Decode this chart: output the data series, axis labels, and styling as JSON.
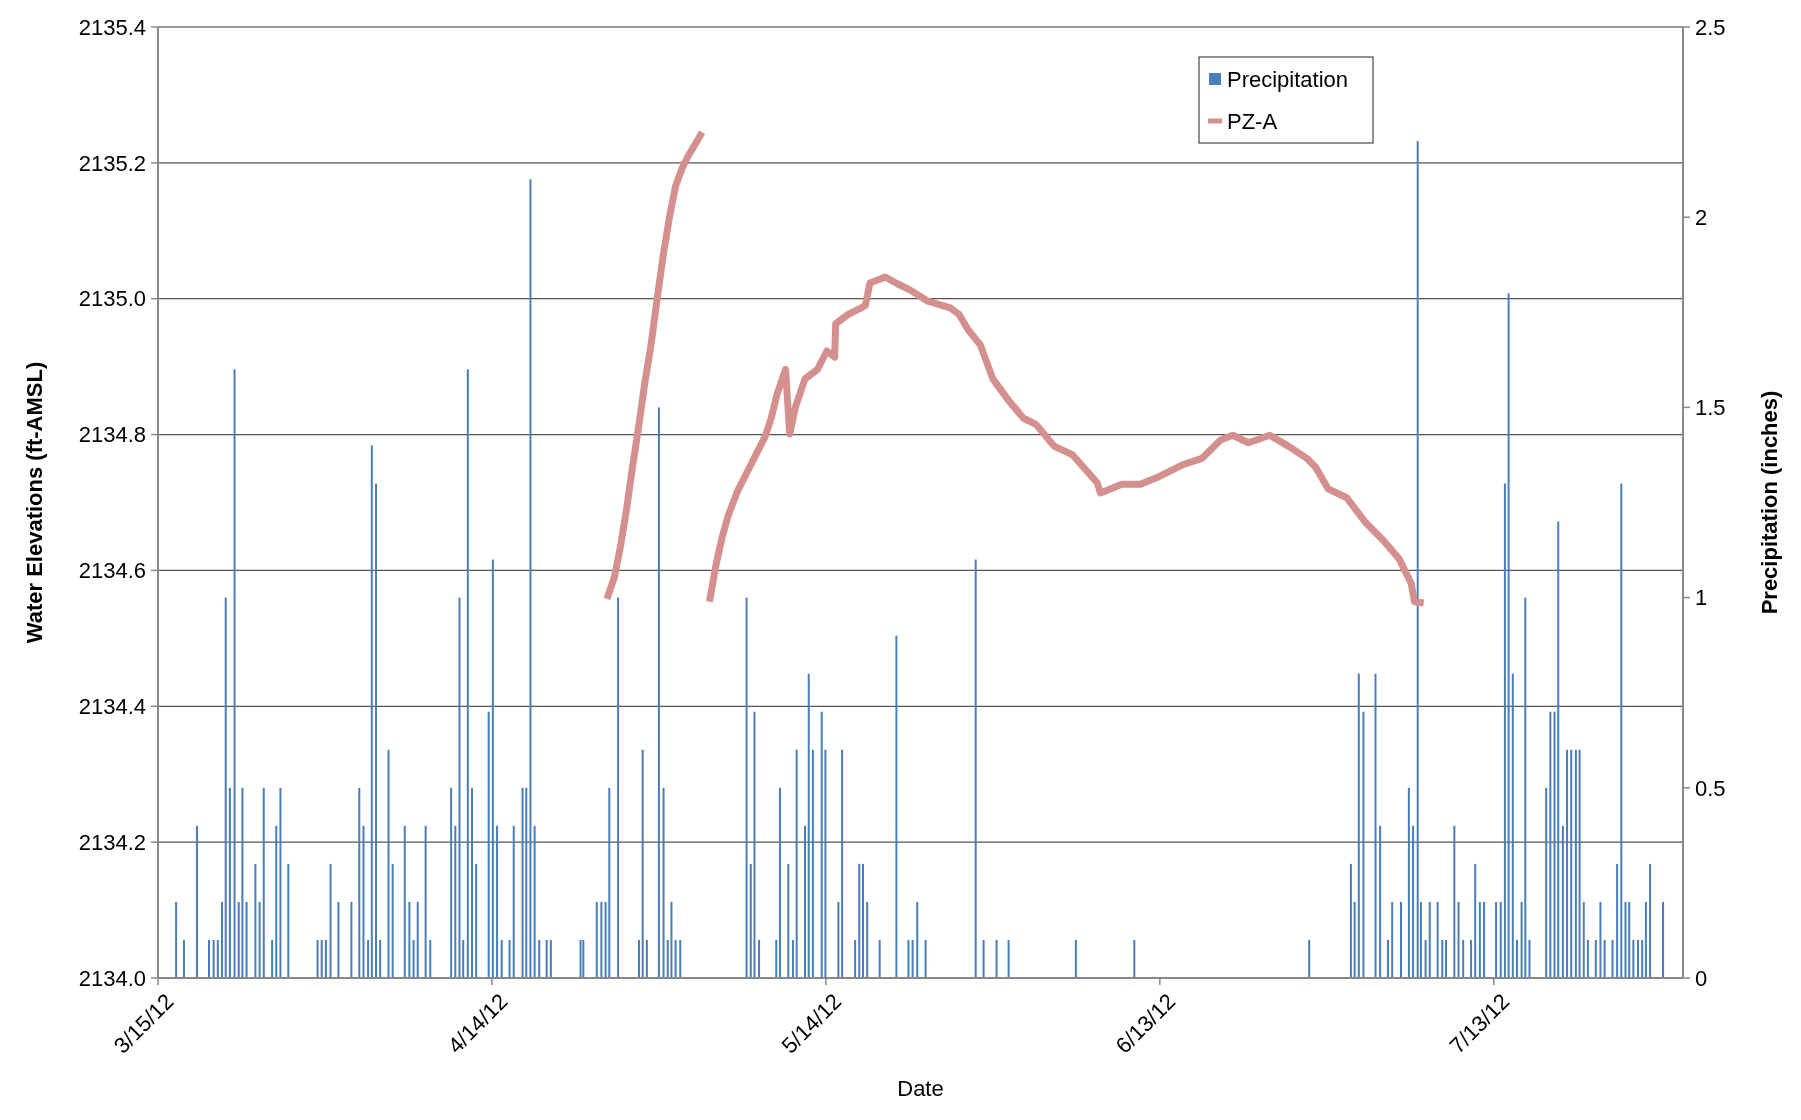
{
  "chart_data": {
    "type": "bar",
    "xlabel": "Date",
    "ylabel": "Water Elevations (ft-AMSL)",
    "y2label": "Precipitation (inches)",
    "xlim": [
      "2012-03-15",
      "2012-07-30"
    ],
    "xticks": [
      {
        "value": "2012-03-15",
        "label": "3/15/12"
      },
      {
        "value": "2012-04-14",
        "label": "4/14/12"
      },
      {
        "value": "2012-05-14",
        "label": "5/14/12"
      },
      {
        "value": "2012-06-13",
        "label": "6/13/12"
      },
      {
        "value": "2012-07-13",
        "label": "7/13/12"
      }
    ],
    "ylim": [
      2134.0,
      2135.4
    ],
    "yticks": [
      {
        "value": 2134,
        "label": "2134.0"
      },
      2134.2,
      2134.4,
      2134.6,
      2134.8,
      {
        "value": 2135,
        "label": "2135.0"
      },
      2135.2,
      2135.4
    ],
    "y2lim": [
      0,
      2.5
    ],
    "y2ticks": [
      0,
      0.5,
      1,
      1.5,
      2,
      2.5
    ],
    "grid": "y",
    "legend": "top right",
    "series": [
      {
        "name": "Precipitation",
        "axis": "y2",
        "color": "#4a7ebb",
        "x": [
          "2012-03-16T15:00",
          "2012-03-17T08:00",
          "2012-03-18T12:00",
          "2012-03-19T14:00",
          "2012-03-20T00:00",
          "2012-03-20T09:00",
          "2012-03-20T18:00",
          "2012-03-21T02:00",
          "2012-03-21T11:00",
          "2012-03-21T21:00",
          "2012-03-22T06:00",
          "2012-03-22T14:00",
          "2012-03-22T23:00",
          "2012-03-23T18:00",
          "2012-03-24T03:00",
          "2012-03-24T12:00",
          "2012-03-25T06:00",
          "2012-03-25T15:00",
          "2012-03-26T00:00",
          "2012-03-26T17:00",
          "2012-03-29T08:00",
          "2012-03-29T17:00",
          "2012-03-30T02:00",
          "2012-03-30T12:00",
          "2012-03-31T05:00",
          "2012-04-01T09:00",
          "2012-04-02T02:00",
          "2012-04-02T11:00",
          "2012-04-02T21:00",
          "2012-04-03T05:00",
          "2012-04-03T14:00",
          "2012-04-03T23:00",
          "2012-04-04T17:00",
          "2012-04-05T02:00",
          "2012-04-06T04:00",
          "2012-04-06T14:00",
          "2012-04-06T23:00",
          "2012-04-07T08:00",
          "2012-04-08T01:00",
          "2012-04-08T11:00",
          "2012-04-10T08:00",
          "2012-04-10T17:00",
          "2012-04-11T02:00",
          "2012-04-11T10:00",
          "2012-04-11T20:00",
          "2012-04-12T05:00",
          "2012-04-12T14:00",
          "2012-04-13T17:00",
          "2012-04-14T02:00",
          "2012-04-14T11:00",
          "2012-04-14T21:00",
          "2012-04-15T14:00",
          "2012-04-15T23:00",
          "2012-04-16T18:00",
          "2012-04-17T02:00",
          "2012-04-17T11:00",
          "2012-04-17T20:00",
          "2012-04-18T06:00",
          "2012-04-18T22:00",
          "2012-04-19T07:00",
          "2012-04-21T23:00",
          "2012-04-22T05:00",
          "2012-04-23T10:00",
          "2012-04-23T20:00",
          "2012-04-24T05:00",
          "2012-04-24T13:00",
          "2012-04-25T08:00",
          "2012-04-27T05:00",
          "2012-04-27T13:00",
          "2012-04-27T22:00",
          "2012-04-29T00:00",
          "2012-04-29T10:00",
          "2012-04-29T19:00",
          "2012-04-30T03:00",
          "2012-04-30T12:00",
          "2012-04-30T22:00",
          "2012-05-06T21:00",
          "2012-05-07T06:00",
          "2012-05-07T14:00",
          "2012-05-08T00:00",
          "2012-05-09T13:00",
          "2012-05-09T21:00",
          "2012-05-10T15:00",
          "2012-05-11T01:00",
          "2012-05-11T09:00",
          "2012-05-12T03:00",
          "2012-05-12T11:00",
          "2012-05-12T20:00",
          "2012-05-13T15:00",
          "2012-05-13T23:00",
          "2012-05-15T03:00",
          "2012-05-15T11:00",
          "2012-05-16T15:00",
          "2012-05-17T00:00",
          "2012-05-17T08:00",
          "2012-05-17T17:00",
          "2012-05-18T20:00",
          "2012-05-20T08:00",
          "2012-05-21T10:00",
          "2012-05-21T19:00",
          "2012-05-22T05:00",
          "2012-05-22T23:00",
          "2012-05-27T11:00",
          "2012-05-28T04:00",
          "2012-05-29T08:00",
          "2012-05-30T10:00",
          "2012-06-05T11:00",
          "2012-06-10T17:00",
          "2012-06-26T10:00",
          "2012-06-30T04:00",
          "2012-06-30T12:00",
          "2012-06-30T21:00",
          "2012-07-01T07:00",
          "2012-07-02T09:00",
          "2012-07-02T19:00",
          "2012-07-03T12:00",
          "2012-07-03T21:00",
          "2012-07-04T16:00",
          "2012-07-05T09:00",
          "2012-07-05T18:00",
          "2012-07-06T04:00",
          "2012-07-06T11:00",
          "2012-07-06T21:00",
          "2012-07-07T06:00",
          "2012-07-07T23:00",
          "2012-07-08T09:00",
          "2012-07-08T17:00",
          "2012-07-09T11:00",
          "2012-07-09T20:00",
          "2012-07-10T06:00",
          "2012-07-10T23:00",
          "2012-07-11T08:00",
          "2012-07-11T18:00",
          "2012-07-12T03:00",
          "2012-07-13T05:00",
          "2012-07-13T15:00",
          "2012-07-14T00:00",
          "2012-07-14T08:00",
          "2012-07-14T17:00",
          "2012-07-15T02:00",
          "2012-07-15T12:00",
          "2012-07-15T20:00",
          "2012-07-16T05:00",
          "2012-07-17T17:00",
          "2012-07-18T02:00",
          "2012-07-18T11:00",
          "2012-07-18T19:00",
          "2012-07-19T05:00",
          "2012-07-19T14:00",
          "2012-07-19T23:00",
          "2012-07-20T09:00",
          "2012-07-20T17:00",
          "2012-07-21T02:00",
          "2012-07-21T11:00",
          "2012-07-22T04:00",
          "2012-07-22T14:00",
          "2012-07-22T23:00",
          "2012-07-23T16:00",
          "2012-07-24T02:00",
          "2012-07-24T11:00",
          "2012-07-24T20:00",
          "2012-07-25T04:00",
          "2012-07-25T13:00",
          "2012-07-25T23:00",
          "2012-07-26T08:00",
          "2012-07-26T16:00",
          "2012-07-27T01:00",
          "2012-07-28T05:00"
        ],
        "values": [
          0.2,
          0.1,
          0.4,
          0.1,
          0.1,
          0.1,
          0.2,
          1.0,
          0.5,
          1.6,
          0.2,
          0.5,
          0.2,
          0.3,
          0.2,
          0.5,
          0.1,
          0.4,
          0.5,
          0.3,
          0.1,
          0.1,
          0.1,
          0.3,
          0.2,
          0.2,
          0.5,
          0.4,
          0.1,
          1.4,
          1.3,
          0.1,
          0.6,
          0.3,
          0.4,
          0.2,
          0.1,
          0.2,
          0.4,
          0.1,
          0.5,
          0.4,
          1.0,
          0.1,
          1.6,
          0.5,
          0.3,
          0.7,
          1.1,
          0.4,
          0.1,
          0.1,
          0.4,
          0.5,
          0.5,
          2.1,
          0.4,
          0.1,
          0.1,
          0.1,
          0.1,
          0.1,
          0.2,
          0.2,
          0.2,
          0.5,
          1.0,
          0.1,
          0.6,
          0.1,
          1.5,
          0.5,
          0.1,
          0.2,
          0.1,
          0.1,
          1.0,
          0.3,
          0.7,
          0.1,
          0.1,
          0.5,
          0.3,
          0.1,
          0.6,
          0.4,
          0.8,
          0.6,
          0.7,
          0.6,
          0.2,
          0.6,
          0.1,
          0.3,
          0.3,
          0.2,
          0.1,
          0.9,
          0.1,
          0.1,
          0.2,
          0.1,
          1.1,
          0.1,
          0.1,
          0.1,
          0.1,
          0.1,
          0.1,
          0.3,
          0.2,
          0.8,
          0.7,
          0.8,
          0.4,
          0.1,
          0.2,
          0.2,
          0.5,
          0.4,
          2.2,
          0.2,
          0.1,
          0.2,
          0.2,
          0.1,
          0.1,
          0.4,
          0.2,
          0.1,
          0.1,
          0.3,
          0.2,
          0.2,
          0.2,
          0.2,
          1.3,
          1.8,
          0.8,
          0.1,
          0.2,
          1.0,
          0.1,
          0.5,
          0.7,
          0.7,
          1.2,
          0.4,
          0.6,
          0.6,
          0.6,
          0.6,
          0.2,
          0.1,
          0.1,
          0.2,
          0.1,
          0.1,
          0.3,
          1.3,
          0.2,
          0.2,
          0.1,
          0.1,
          0.1,
          0.2,
          0.3,
          0.2
        ]
      },
      {
        "name": "PZ-A",
        "type": "line",
        "axis": "y",
        "color": "#d4908f",
        "line_style": "solid",
        "x": [
          "2012-04-24T08:00",
          "2012-04-25T00:00",
          "2012-04-25T13:00",
          "2012-04-26T02:00",
          "2012-04-26T15:00",
          "2012-04-27T05:00",
          "2012-04-27T18:00",
          "2012-04-28T07:00",
          "2012-04-28T21:00",
          "2012-04-29T10:00",
          "2012-04-29T23:00",
          "2012-04-30T12:00",
          "2012-05-01T02:00",
          "2012-05-01T15:00",
          "2012-05-02T11:00",
          "2012-05-02T21:00",
          "2012-05-03T05:00",
          "2012-05-03T13:00",
          "2012-05-04T03:00",
          "2012-05-04T16:00",
          "2012-05-05T05:00",
          "2012-05-06T01:00",
          "2012-05-06T21:00",
          "2012-05-07T17:00",
          "2012-05-08T13:00",
          "2012-05-09T02:00",
          "2012-05-09T15:00",
          "2012-05-10T09:00",
          "2012-05-10T18:00",
          "2012-05-11T07:00",
          "2012-05-12T03:00",
          "2012-05-13T06:00",
          "2012-05-14T02:00",
          "2012-05-14T19:00",
          "2012-05-14T21:00",
          "2012-05-16T00:00",
          "2012-05-17T03:00",
          "2012-05-17T13:00",
          "2012-05-17T23:00",
          "2012-05-19T08:00",
          "2012-05-20T10:00",
          "2012-05-21T13:00",
          "2012-05-23T05:00",
          "2012-05-25T03:00",
          "2012-05-25T23:00",
          "2012-05-26T19:00",
          "2012-05-27T21:00",
          "2012-05-29T00:00",
          "2012-05-30T09:00",
          "2012-05-31T18:00",
          "2012-06-01T21:00",
          "2012-06-03T12:00",
          "2012-06-05T04:00",
          "2012-06-07T09:00",
          "2012-06-07T16:00",
          "2012-06-09T14:00",
          "2012-06-11T06:00",
          "2012-06-12T22:00",
          "2012-06-15T03:00",
          "2012-06-16T19:00",
          "2012-06-18T11:00",
          "2012-06-19T13:00",
          "2012-06-20T23:00",
          "2012-06-22T21:00",
          "2012-06-24T13:00",
          "2012-06-26T05:00",
          "2012-06-27T00:00",
          "2012-06-28T03:00",
          "2012-06-29T19:00",
          "2012-07-01T11:00",
          "2012-07-03T02:00",
          "2012-07-04T12:00",
          "2012-07-05T14:00",
          "2012-07-05T21:00",
          "2012-07-06T17:00"
        ],
        "values": [
          2134.558,
          2134.59,
          2134.635,
          2134.689,
          2134.752,
          2134.815,
          2134.878,
          2134.932,
          2135.004,
          2135.067,
          2135.121,
          2135.166,
          2135.192,
          2135.21,
          2135.233,
          2135.245,
          null,
          2134.554,
          2134.608,
          2134.648,
          2134.68,
          2134.716,
          2134.743,
          2134.77,
          2134.797,
          2134.824,
          2134.86,
          2134.896,
          2134.801,
          2134.842,
          2134.882,
          2134.896,
          2134.923,
          2134.914,
          2134.963,
          2134.977,
          2134.986,
          2134.99,
          2135.023,
          2135.032,
          2135.022,
          2135.013,
          2134.996,
          2134.987,
          2134.977,
          2134.954,
          2134.932,
          2134.882,
          2134.851,
          2134.824,
          2134.815,
          2134.783,
          2134.77,
          2134.729,
          2134.714,
          2134.727,
          2134.727,
          2134.738,
          2134.756,
          2134.765,
          2134.792,
          2134.799,
          2134.788,
          2134.799,
          2134.783,
          2134.765,
          2134.752,
          2134.72,
          2134.707,
          2134.671,
          2134.644,
          2134.617,
          2134.581,
          2134.554,
          2134.552
        ]
      }
    ]
  }
}
